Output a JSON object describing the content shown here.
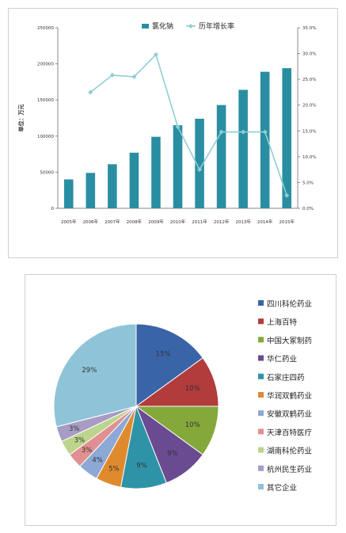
{
  "chart_data": [
    {
      "type": "bar",
      "categories": [
        "2005年",
        "2006年",
        "2007年",
        "2008年",
        "2009年",
        "2010年",
        "2011年",
        "2012年",
        "2013年",
        "2014年",
        "2015年"
      ],
      "series": [
        {
          "name": "氯化钠",
          "type": "bar",
          "axis": "left",
          "color": "#2a8ea3",
          "values": [
            40000,
            49000,
            61000,
            77000,
            99000,
            115000,
            124000,
            143000,
            164000,
            189000,
            194000
          ]
        },
        {
          "name": "历年增长率",
          "type": "line",
          "axis": "right",
          "color": "#8ecfd4",
          "values": [
            null,
            22.5,
            25.8,
            25.5,
            29.8,
            15.8,
            7.5,
            14.8,
            14.8,
            14.8,
            2.5
          ]
        }
      ],
      "ylabel": "单位：万元",
      "ylim": [
        0,
        250000
      ],
      "y_ticks": [
        "0",
        "50000",
        "100000",
        "150000",
        "200000",
        "250000"
      ],
      "y2lim": [
        0,
        35
      ],
      "y2_ticks": [
        "0.0%",
        "5.0%",
        "10.0%",
        "15.0%",
        "20.0%",
        "25.0%",
        "30.0%",
        "35.0%"
      ],
      "legend_position": "top"
    },
    {
      "type": "pie",
      "labels": [
        "四川科伦药业",
        "上海百特",
        "中国大冢制药",
        "华仁药业",
        "石家庄四药",
        "华润双鹤药业",
        "安徽双鹤药业",
        "天津百特医疗",
        "湖南科伦药业",
        "杭州民生药业",
        "其它企业"
      ],
      "values": [
        15,
        10,
        10,
        9,
        9,
        5,
        4,
        3,
        3,
        3,
        29
      ],
      "value_labels": [
        "15%",
        "10%",
        "10%",
        "9%",
        "9%",
        "5%",
        "4%",
        "3%",
        "3%",
        "3%",
        "29%"
      ],
      "colors": [
        "#3a64a8",
        "#b23b3b",
        "#84a83a",
        "#6a4a90",
        "#2f93a8",
        "#e08a2e",
        "#8ca8d4",
        "#e09090",
        "#bcd48c",
        "#a89cc4",
        "#8fc4d8"
      ],
      "legend_position": "right"
    }
  ]
}
